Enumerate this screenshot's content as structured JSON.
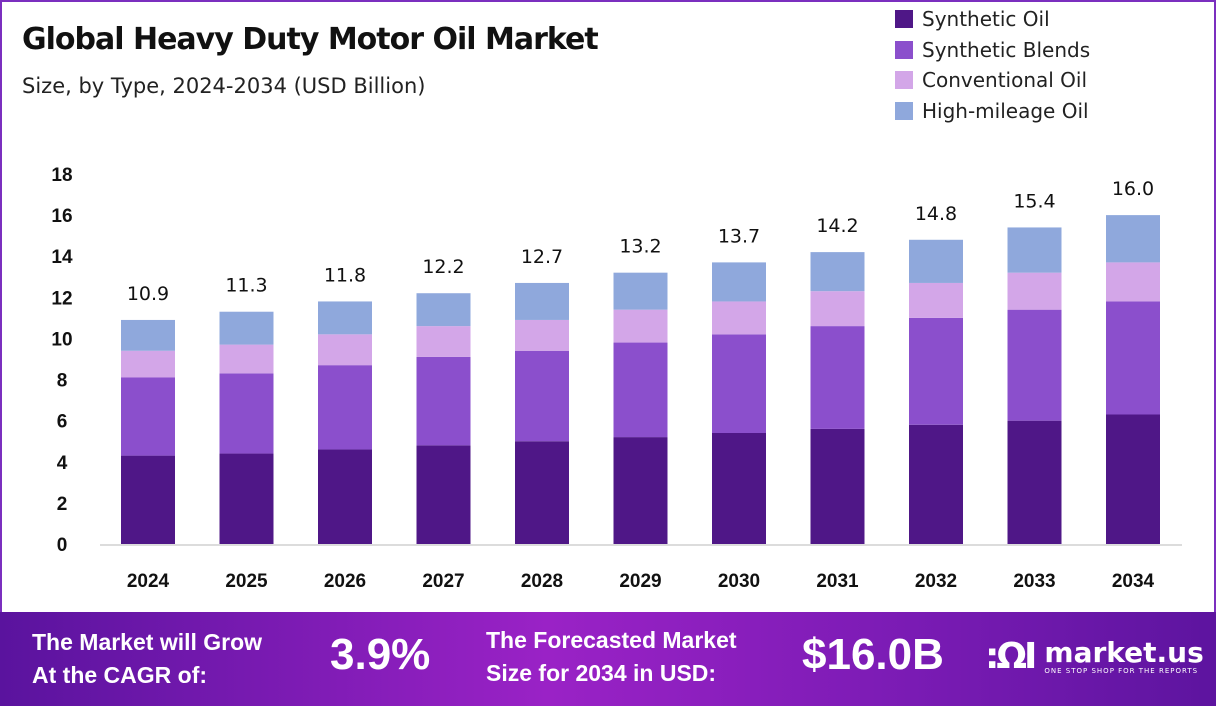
{
  "chart_data": {
    "type": "bar",
    "stacked": true,
    "title": "Global Heavy Duty Motor Oil Market",
    "subtitle": "Size, by Type, 2024-2034 (USD Billion)",
    "categories": [
      "2024",
      "2025",
      "2026",
      "2027",
      "2028",
      "2029",
      "2030",
      "2031",
      "2032",
      "2033",
      "2034"
    ],
    "totals": [
      "10.9",
      "11.3",
      "11.8",
      "12.2",
      "12.7",
      "13.2",
      "13.7",
      "14.2",
      "14.8",
      "15.4",
      "16.0"
    ],
    "series": [
      {
        "name": "Synthetic Oil",
        "color": "#4f1787",
        "values": [
          4.3,
          4.4,
          4.6,
          4.8,
          5.0,
          5.2,
          5.4,
          5.6,
          5.8,
          6.0,
          6.3
        ]
      },
      {
        "name": "Synthetic Blends",
        "color": "#8b4fcc",
        "values": [
          3.8,
          3.9,
          4.1,
          4.3,
          4.4,
          4.6,
          4.8,
          5.0,
          5.2,
          5.4,
          5.5
        ]
      },
      {
        "name": "Conventional Oil",
        "color": "#d3a6e8",
        "values": [
          1.3,
          1.4,
          1.5,
          1.5,
          1.5,
          1.6,
          1.6,
          1.7,
          1.7,
          1.8,
          1.9
        ]
      },
      {
        "name": "High-mileage Oil",
        "color": "#8fa8dc",
        "values": [
          1.5,
          1.6,
          1.6,
          1.6,
          1.8,
          1.8,
          1.9,
          1.9,
          2.1,
          2.2,
          2.3
        ]
      }
    ],
    "ylim": [
      0,
      18
    ],
    "yticks": [
      "0",
      "2",
      "4",
      "6",
      "8",
      "10",
      "12",
      "14",
      "16",
      "18"
    ],
    "grid": false,
    "legend": "top-right"
  },
  "footer": {
    "cagr_label_1": "The Market will Grow",
    "cagr_label_2": "At the CAGR of:",
    "cagr_value": "3.9%",
    "forecast_label_1": "The Forecasted Market",
    "forecast_label_2": "Size for 2034 in USD:",
    "forecast_value": "$16.0B",
    "brand": "market.us",
    "brand_tagline": "ONE STOP SHOP FOR THE REPORTS"
  }
}
